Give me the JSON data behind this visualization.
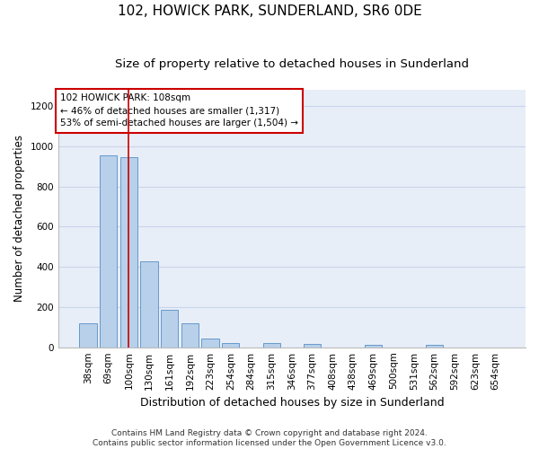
{
  "title": "102, HOWICK PARK, SUNDERLAND, SR6 0DE",
  "subtitle": "Size of property relative to detached houses in Sunderland",
  "xlabel": "Distribution of detached houses by size in Sunderland",
  "ylabel": "Number of detached properties",
  "footer_line1": "Contains HM Land Registry data © Crown copyright and database right 2024.",
  "footer_line2": "Contains public sector information licensed under the Open Government Licence v3.0.",
  "categories": [
    "38sqm",
    "69sqm",
    "100sqm",
    "130sqm",
    "161sqm",
    "192sqm",
    "223sqm",
    "254sqm",
    "284sqm",
    "315sqm",
    "346sqm",
    "377sqm",
    "408sqm",
    "438sqm",
    "469sqm",
    "500sqm",
    "531sqm",
    "562sqm",
    "592sqm",
    "623sqm",
    "654sqm"
  ],
  "values": [
    120,
    955,
    945,
    425,
    185,
    120,
    45,
    22,
    0,
    22,
    0,
    18,
    0,
    0,
    12,
    0,
    0,
    12,
    0,
    0,
    0
  ],
  "bar_color": "#b8d0ea",
  "bar_edge_color": "#6699cc",
  "grid_color": "#c8d4e8",
  "background_color": "#e8eef8",
  "annotation_box_text": "102 HOWICK PARK: 108sqm\n← 46% of detached houses are smaller (1,317)\n53% of semi-detached houses are larger (1,504) →",
  "annotation_box_color": "#ffffff",
  "annotation_box_border": "#cc0000",
  "vline_color": "#cc0000",
  "vline_x": 2.0,
  "ylim": [
    0,
    1280
  ],
  "yticks": [
    0,
    200,
    400,
    600,
    800,
    1000,
    1200
  ],
  "title_fontsize": 11,
  "subtitle_fontsize": 9.5,
  "tick_fontsize": 7.5,
  "ylabel_fontsize": 8.5,
  "xlabel_fontsize": 9,
  "annotation_fontsize": 7.5,
  "footer_fontsize": 6.5
}
